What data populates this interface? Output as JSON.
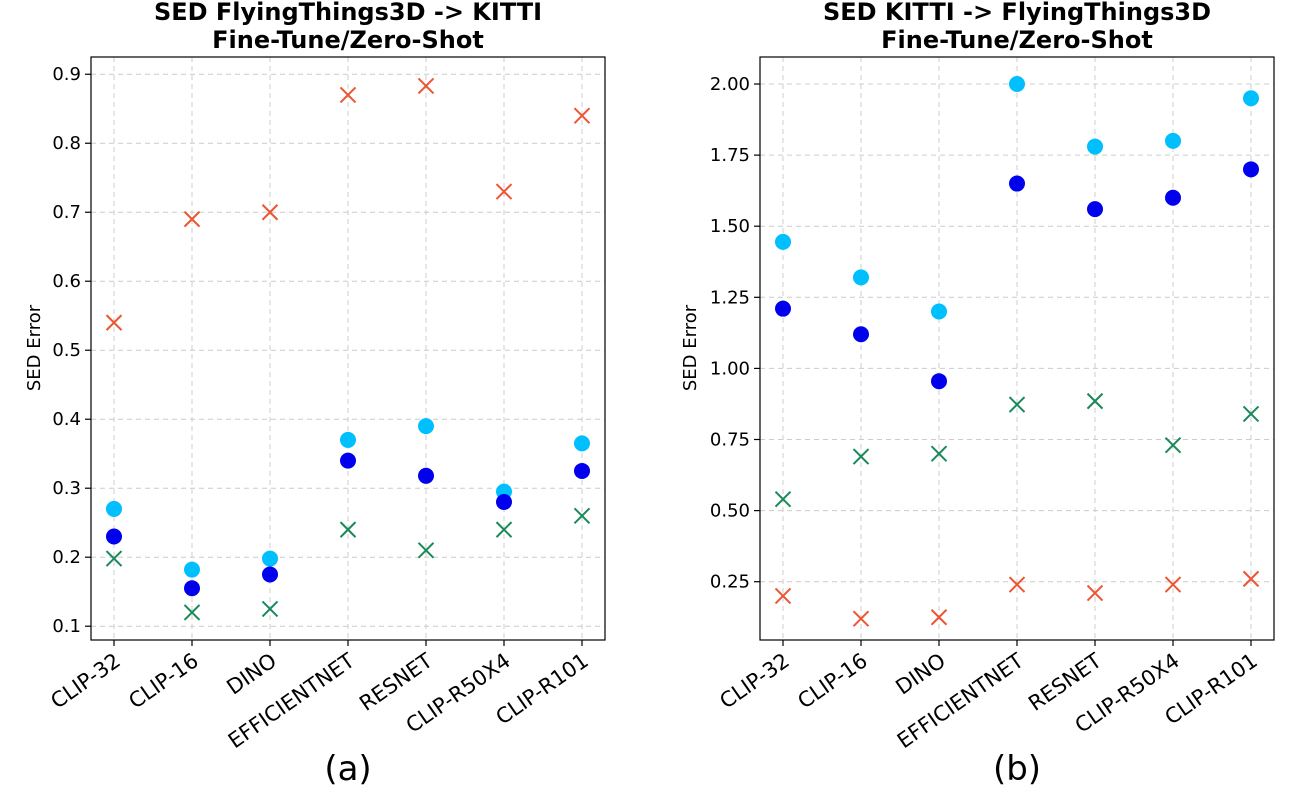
{
  "chart_data": [
    {
      "type": "scatter",
      "title": "SED FlyingThings3D -> KITTI",
      "subtitle": "Fine-Tune/Zero-Shot",
      "ylabel": "SED Error",
      "panel_label": "(a)",
      "categories": [
        "CLIP-32",
        "CLIP-16",
        "DINO",
        "EFFICIENTNET",
        "RESNET",
        "CLIP-R50X4",
        "CLIP-R101"
      ],
      "ylim": [
        0.08,
        0.925
      ],
      "yticks": [
        0.1,
        0.2,
        0.3,
        0.4,
        0.5,
        0.6,
        0.7,
        0.8,
        0.9
      ],
      "ytick_labels": [
        "0.1",
        "0.2",
        "0.3",
        "0.4",
        "0.5",
        "0.6",
        "0.7",
        "0.8",
        "0.9"
      ],
      "grid": true,
      "series": [
        {
          "marker": "circle",
          "color": "#00bfff",
          "values": [
            0.27,
            0.182,
            0.198,
            0.37,
            0.39,
            0.295,
            0.365
          ]
        },
        {
          "marker": "circle",
          "color": "#0000ee",
          "values": [
            0.23,
            0.155,
            0.175,
            0.34,
            0.318,
            0.28,
            0.325
          ]
        },
        {
          "marker": "x",
          "color": "#ee5533",
          "values": [
            0.54,
            0.69,
            0.7,
            0.87,
            0.883,
            0.73,
            0.84
          ]
        },
        {
          "marker": "x",
          "color": "#1a8a5a",
          "values": [
            0.198,
            0.12,
            0.125,
            0.24,
            0.21,
            0.24,
            0.26
          ]
        }
      ]
    },
    {
      "type": "scatter",
      "title": "SED KITTI -> FlyingThings3D",
      "subtitle": "Fine-Tune/Zero-Shot",
      "ylabel": "SED Error",
      "panel_label": "(b)",
      "categories": [
        "CLIP-32",
        "CLIP-16",
        "DINO",
        "EFFICIENTNET",
        "RESNET",
        "CLIP-R50X4",
        "CLIP-R101"
      ],
      "ylim": [
        0.045,
        2.095
      ],
      "yticks": [
        0.25,
        0.5,
        0.75,
        1.0,
        1.25,
        1.5,
        1.75,
        2.0
      ],
      "ytick_labels": [
        "0.25",
        "0.50",
        "0.75",
        "1.00",
        "1.25",
        "1.50",
        "1.75",
        "2.00"
      ],
      "grid": true,
      "series": [
        {
          "marker": "circle",
          "color": "#00bfff",
          "values": [
            1.445,
            1.32,
            1.2,
            2.0,
            1.78,
            1.8,
            1.95
          ]
        },
        {
          "marker": "circle",
          "color": "#0000ee",
          "values": [
            1.21,
            1.12,
            0.955,
            1.65,
            1.56,
            1.6,
            1.7
          ]
        },
        {
          "marker": "x",
          "color": "#1a8a5a",
          "values": [
            0.54,
            0.69,
            0.7,
            0.873,
            0.885,
            0.73,
            0.84
          ]
        },
        {
          "marker": "x",
          "color": "#ee5533",
          "values": [
            0.2,
            0.12,
            0.125,
            0.24,
            0.21,
            0.24,
            0.26
          ]
        }
      ]
    }
  ]
}
